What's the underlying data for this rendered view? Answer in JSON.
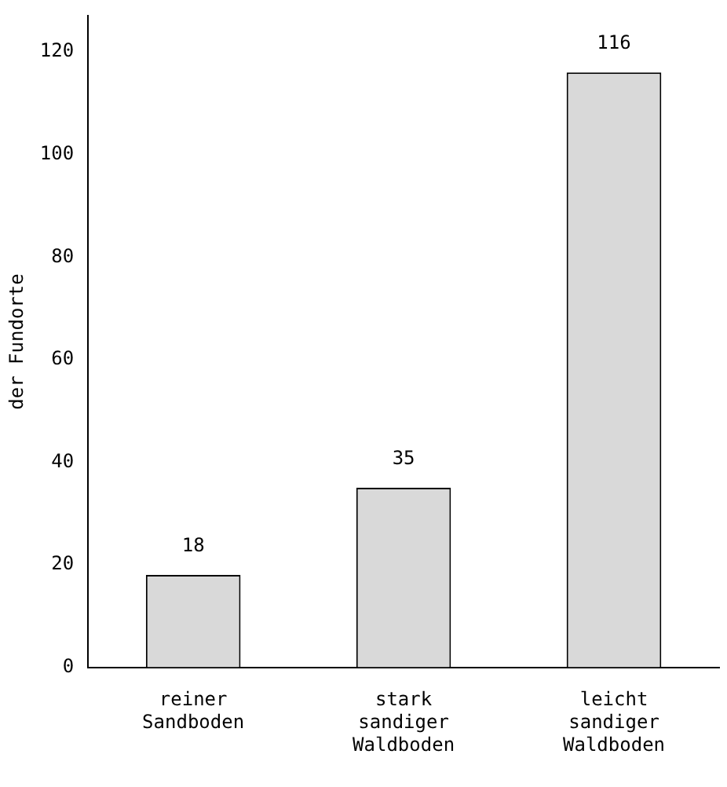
{
  "chart_data": {
    "type": "bar",
    "ylabel": "der Fundorte",
    "categories": [
      "reiner Sandboden",
      "stark sandiger Waldboden",
      "leicht sandiger Waldboden"
    ],
    "values": [
      18,
      35,
      116
    ],
    "color": "#d9d9d9",
    "ylim": [
      0,
      127
    ],
    "yticks": [
      0,
      20,
      40,
      60,
      80,
      100,
      120
    ],
    "grid": false,
    "legend": false,
    "data_labels": true
  }
}
